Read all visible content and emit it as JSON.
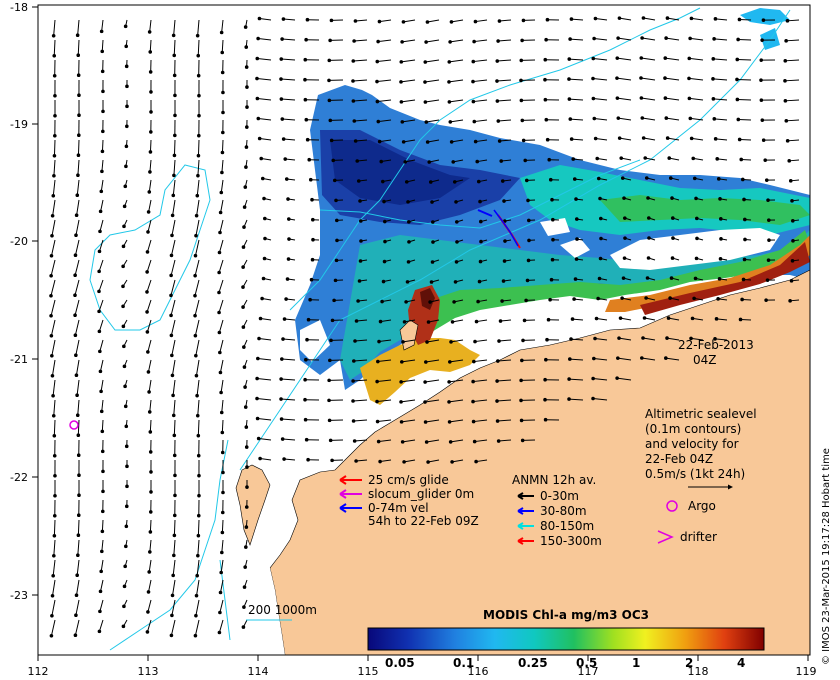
{
  "map": {
    "x_ticks": [
      "112",
      "113",
      "114",
      "115",
      "116",
      "117",
      "118",
      "119"
    ],
    "y_ticks": [
      "-18",
      "-19",
      "-20",
      "-21",
      "-22",
      "-23"
    ],
    "date_line1": "22-Feb-2013",
    "date_line2": "04Z",
    "credit": "© IMOS 23-Mar-2015 19:17:28 Hobart time",
    "colors": {
      "land": "#f8c898",
      "ocean": "#ffffff",
      "contour": "#22c8e8",
      "argo": "#e000e0"
    }
  },
  "sealevel_note": {
    "line1": "Altimetric sealevel",
    "line2": "(0.1m contours)",
    "line3": "and velocity for",
    "line4": "22-Feb 04Z",
    "line5": "0.5m/s (1kt 24h)"
  },
  "glider_legend": {
    "red": "25 cm/s glide",
    "magenta": "slocum_glider 0m",
    "blue1": "0-74m vel",
    "blue2": "54h to 22-Feb 09Z"
  },
  "anmn_legend": {
    "title": "ANMN 12h av.",
    "items": [
      {
        "label": "0-30m",
        "color": "#000000"
      },
      {
        "label": "30-80m",
        "color": "#0000ff"
      },
      {
        "label": "80-150m",
        "color": "#00e0e0"
      },
      {
        "label": "150-300m",
        "color": "#ff0000"
      }
    ]
  },
  "markers": {
    "argo": "Argo",
    "drifter": "drifter"
  },
  "scale_label": "200  1000m",
  "colorbar": {
    "title": "MODIS Chl-a mg/m3 OC3",
    "ticks": [
      "0.05",
      "0.1",
      "0.25",
      "0.5",
      "1",
      "2",
      "4"
    ]
  }
}
